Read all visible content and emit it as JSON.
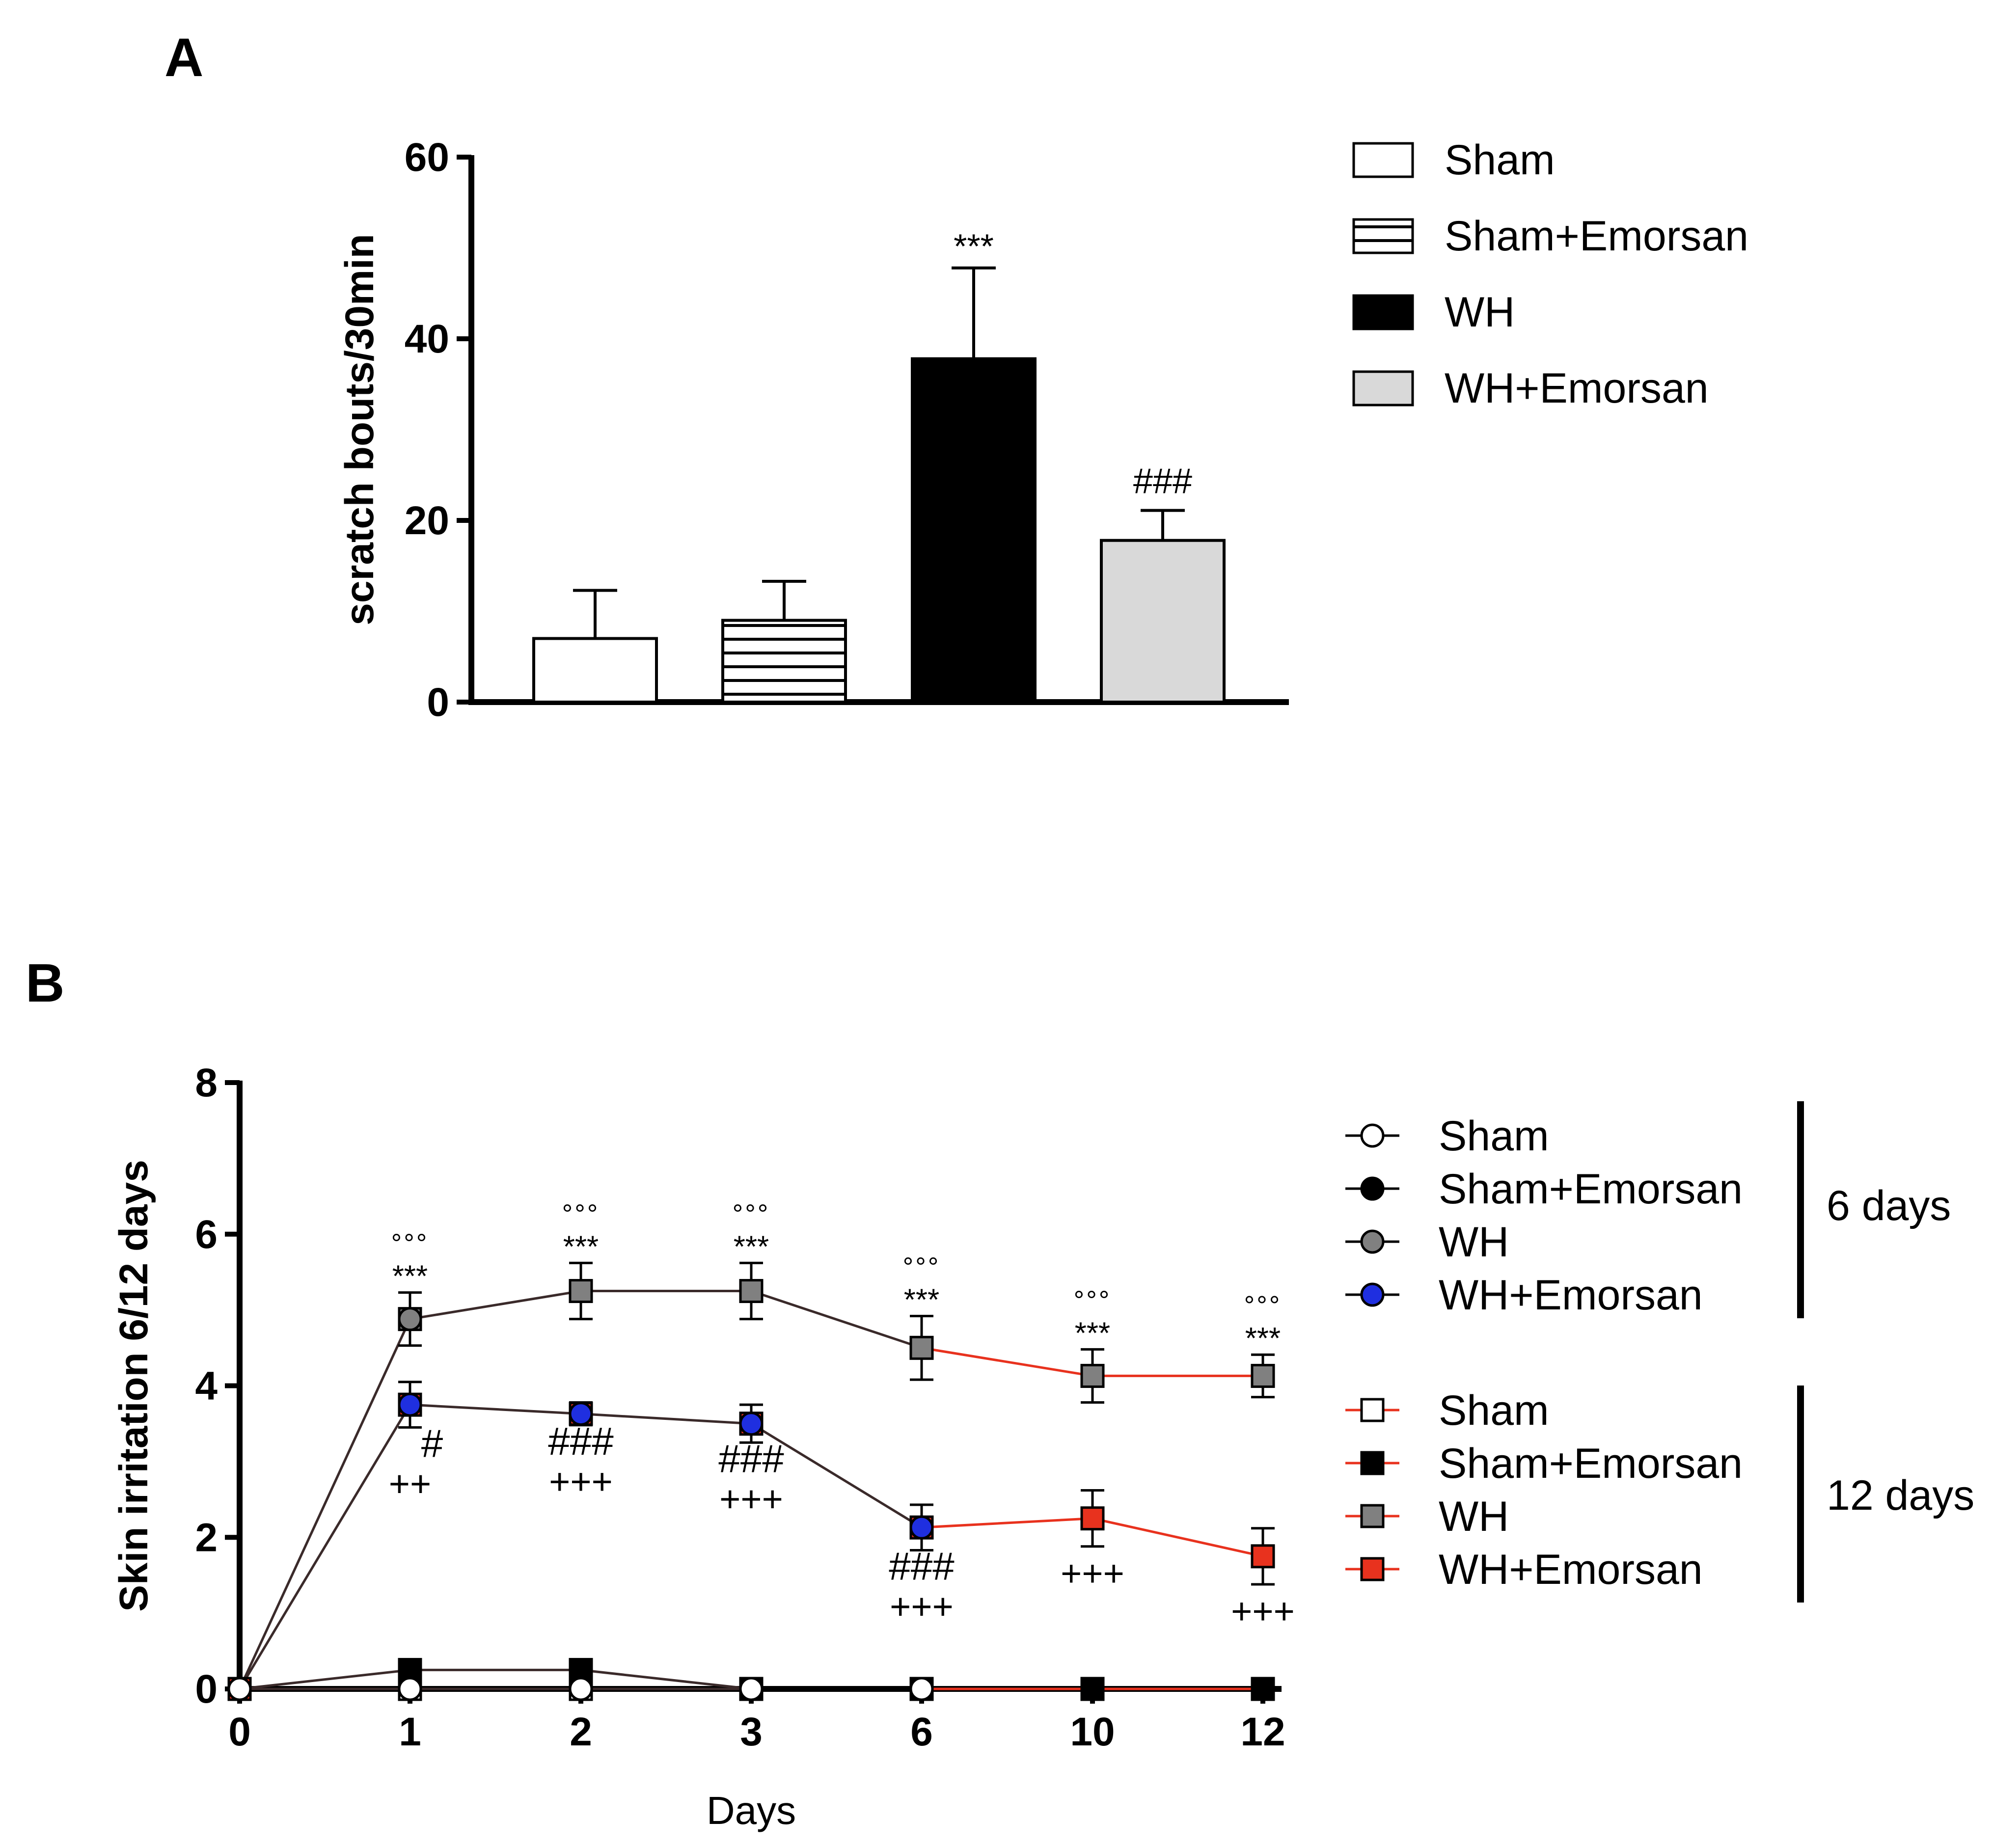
{
  "chart_data": [
    {
      "panel": "A",
      "type": "bar",
      "ylabel": "scratch bouts/30min",
      "xlabel": "",
      "ylim": [
        0,
        60
      ],
      "yticks": [
        "0",
        "20",
        "40",
        "60"
      ],
      "categories": [
        "Sham",
        "Sham+Emorsan",
        "WH",
        "WH+Emorsan"
      ],
      "values": [
        7,
        9,
        37.8,
        17.8
      ],
      "errors": [
        5.3,
        4.3,
        10,
        3.3
      ],
      "annotations": [
        "",
        "",
        "***",
        "###"
      ],
      "legend": [
        "Sham",
        "Sham+Emorsan",
        "WH",
        "WH+Emorsan"
      ],
      "fills": [
        "#ffffff",
        "hatch",
        "#000000",
        "#d9d9d9"
      ]
    },
    {
      "panel": "B",
      "type": "line",
      "ylabel": "Skin irritation 6/12 days",
      "xlabel": "Days",
      "ylim": [
        0,
        8
      ],
      "yticks": [
        "0",
        "2",
        "4",
        "6",
        "8"
      ],
      "x": [
        "0",
        "1",
        "2",
        "3",
        "6",
        "10",
        "12"
      ],
      "series": [
        {
          "name": "Sham",
          "group": "6 days",
          "marker": "circle",
          "fill": "#ffffff",
          "values": [
            0,
            0,
            0,
            0,
            null,
            null,
            null
          ],
          "errors": [
            0,
            0,
            0,
            0,
            null,
            null,
            null
          ]
        },
        {
          "name": "Sham+Emorsan",
          "group": "6 days",
          "marker": "circle",
          "fill": "#000000",
          "values": [
            0,
            0.25,
            0.25,
            0,
            null,
            null,
            null
          ],
          "errors": [
            0,
            0,
            0,
            0,
            null,
            null,
            null
          ]
        },
        {
          "name": "WH",
          "group": "6 days",
          "marker": "circle",
          "fill": "#808080",
          "values": [
            0,
            4.88,
            5.25,
            5.25,
            4.5,
            null,
            null
          ],
          "errors": [
            0,
            0.35,
            0.37,
            0.37,
            0.42,
            null,
            null
          ]
        },
        {
          "name": "WH+Emorsan",
          "group": "6 days",
          "marker": "circle",
          "fill": "#1f2fe0",
          "values": [
            0,
            3.75,
            3.63,
            3.5,
            2.13,
            null,
            null
          ],
          "errors": [
            0,
            0.3,
            0.15,
            0.25,
            0.3,
            null,
            null
          ]
        },
        {
          "name": "Sham",
          "group": "12 days",
          "marker": "square",
          "fill": "#ffffff",
          "values": [
            0,
            0,
            0,
            0,
            0,
            0,
            0
          ],
          "errors": [
            0,
            0,
            0,
            0,
            0,
            0,
            0
          ]
        },
        {
          "name": "Sham+Emorsan",
          "group": "12 days",
          "marker": "square",
          "fill": "#000000",
          "values": [
            0,
            0.25,
            0.25,
            0,
            0,
            0,
            0
          ],
          "errors": [
            0,
            0,
            0,
            0,
            0,
            0,
            0
          ]
        },
        {
          "name": "WH",
          "group": "12 days",
          "marker": "square",
          "fill": "#808080",
          "values": [
            0,
            4.88,
            5.25,
            5.25,
            4.5,
            4.13,
            4.13
          ],
          "errors": [
            0,
            0.35,
            0.37,
            0.37,
            0.42,
            0.35,
            0.28
          ]
        },
        {
          "name": "WH+Emorsan",
          "group": "12 days",
          "marker": "square",
          "fill": "#e8321e",
          "values": [
            0,
            3.75,
            3.63,
            3.5,
            2.13,
            2.25,
            1.75
          ],
          "errors": [
            0,
            0.3,
            0.15,
            0.25,
            0.3,
            0.37,
            0.37
          ]
        }
      ],
      "annotations": {
        "degrees": [
          "",
          "°°°",
          "°°°",
          "°°°",
          "°°°",
          "°°°",
          "°°°"
        ],
        "stars": [
          "",
          "***",
          "***",
          "***",
          "***",
          "***",
          "***"
        ],
        "hash": [
          "",
          "#",
          "###",
          "###",
          "###",
          "",
          ""
        ],
        "plus": [
          "",
          "++",
          "+++",
          "+++",
          "+++",
          "+++",
          "+++"
        ]
      },
      "legend_groups": [
        "6 days",
        "12 days"
      ],
      "group_colors": [
        "#000000",
        "#e8321e"
      ],
      "line_colors": {
        "6 days": "#3a2a2a",
        "12 days": "#e8321e"
      }
    }
  ],
  "panel_labels": [
    "A",
    "B"
  ]
}
